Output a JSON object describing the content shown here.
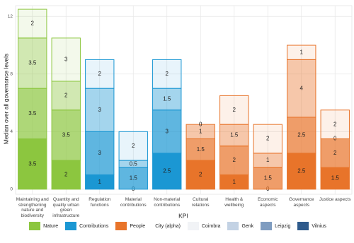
{
  "chart_data": {
    "type": "stacked-bar",
    "y_label": "Median over all governance levels",
    "x_label": "KPI",
    "categories": [
      "Maintaining and strengthening nature and biodiversity",
      "Quantity and quality urban green infrastructure",
      "Regulation functions",
      "Material contributions",
      "Non-material contributions",
      "Cultural relations",
      "Health & wellbeing",
      "Economic aspects",
      "Governance aspects",
      "Justice aspects"
    ],
    "category_fill": [
      "Nature",
      "Nature",
      "Contributions",
      "Contributions",
      "Contributions",
      "People",
      "People",
      "People",
      "People",
      "People"
    ],
    "fill_groups": [
      {
        "name": "Nature",
        "color": "#8cc63f"
      },
      {
        "name": "Contributions",
        "color": "#1b97d3"
      },
      {
        "name": "People",
        "color": "#e8742a"
      }
    ],
    "alpha_title": "City (alpha)",
    "series": [
      {
        "name": "Vilnius",
        "color": "#2f5b8c",
        "alpha": 1.0,
        "values": [
          3.5,
          2,
          1,
          0,
          2.5,
          2,
          1,
          0,
          2.5,
          1.5
        ]
      },
      {
        "name": "Leipzig",
        "color": "#7f9cc0",
        "alpha": 0.7,
        "values": [
          3.5,
          3.5,
          3,
          1.5,
          3,
          1.5,
          2,
          1.5,
          2.5,
          2
        ]
      },
      {
        "name": "Genk",
        "color": "#c3d2e4",
        "alpha": 0.4,
        "values": [
          3.5,
          2,
          3,
          0.5,
          1.5,
          1,
          1.5,
          1,
          4,
          0
        ]
      },
      {
        "name": "Coimbra",
        "color": "#f1f3f6",
        "alpha": 0.1,
        "values": [
          2,
          3,
          2,
          2,
          2,
          0,
          2,
          2,
          1,
          2
        ]
      }
    ],
    "legend_order": [
      "Coimbra",
      "Genk",
      "Leipzig",
      "Vilnius"
    ],
    "ylim": [
      -0.35,
      12.75
    ],
    "yticks": [
      0,
      4,
      8,
      12
    ],
    "grid": true
  }
}
